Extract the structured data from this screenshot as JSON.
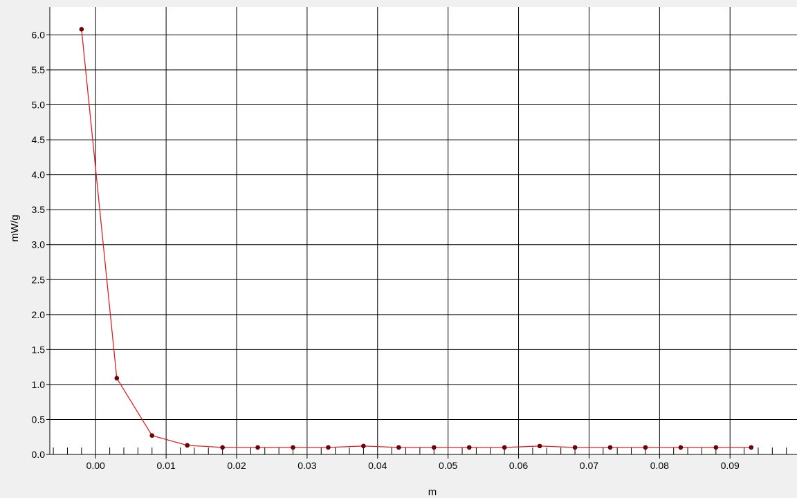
{
  "chart_data": {
    "type": "line",
    "title": "",
    "xlabel": "m",
    "ylabel": "mW/g",
    "xlim": [
      -0.0065,
      0.0995
    ],
    "ylim": [
      0.0,
      6.4
    ],
    "x_ticks": [
      "0.00",
      "0.01",
      "0.02",
      "0.03",
      "0.04",
      "0.05",
      "0.06",
      "0.07",
      "0.08",
      "0.09"
    ],
    "y_ticks": [
      "0.0",
      "0.5",
      "1.0",
      "1.5",
      "2.0",
      "2.5",
      "3.0",
      "3.5",
      "4.0",
      "4.5",
      "5.0",
      "5.5",
      "6.0"
    ],
    "grid": true,
    "colors": {
      "background": "#ffffff",
      "page": "#f0f0f0",
      "grid": "#000000",
      "line": "#e02020",
      "marker": "#7a0000"
    },
    "series": [
      {
        "x": [
          -0.002,
          0.003,
          0.008,
          0.013,
          0.018,
          0.023,
          0.028,
          0.033,
          0.038,
          0.043,
          0.048,
          0.053,
          0.058,
          0.063,
          0.068,
          0.073,
          0.078,
          0.083,
          0.088,
          0.093
        ],
        "y": [
          6.08,
          1.09,
          0.27,
          0.13,
          0.1,
          0.1,
          0.1,
          0.1,
          0.12,
          0.1,
          0.1,
          0.1,
          0.1,
          0.12,
          0.1,
          0.1,
          0.1,
          0.1,
          0.1,
          0.1
        ]
      }
    ]
  }
}
